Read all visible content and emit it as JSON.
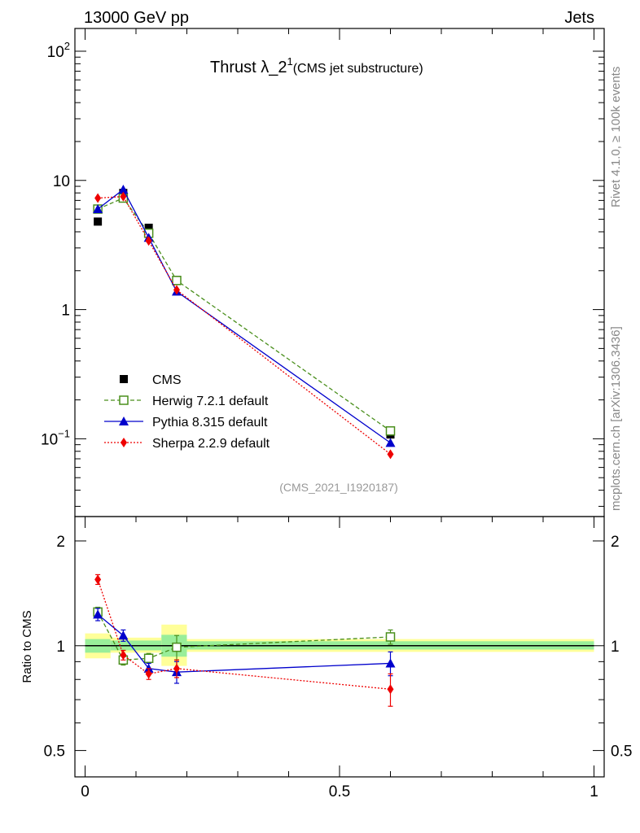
{
  "header": {
    "left": "13000 GeV pp",
    "right": "Jets"
  },
  "side": {
    "rivet": "Rivet 4.1.0, ≥ 100k events",
    "mcplots": "mcplots.cern.ch [arXiv:1306.3436]"
  },
  "chart_data": [
    {
      "type": "scatter",
      "panel": "main",
      "title": "Thrust λ_2",
      "title_sup": "1",
      "subtitle": "(CMS jet substructure)",
      "watermark": "(CMS_2021_I1920187)",
      "yscale": "log",
      "ylim": [
        0.025,
        150
      ],
      "xlim": [
        -0.02,
        1.02
      ],
      "yticks": [
        {
          "value": 0.1,
          "base": "10",
          "exp": "−1"
        },
        {
          "value": 1,
          "base": "1",
          "exp": ""
        },
        {
          "value": 10,
          "base": "10",
          "exp": ""
        },
        {
          "value": 100,
          "base": "10",
          "exp": "2"
        }
      ],
      "legend_position": "lower-left",
      "series": [
        {
          "name": "CMS",
          "label": "CMS",
          "color": "#000000",
          "marker": "square",
          "line": "none",
          "x": [
            0.025,
            0.075,
            0.125,
            0.18,
            0.6
          ],
          "y": [
            4.8,
            8.0,
            4.3,
            1.7,
            0.108
          ]
        },
        {
          "name": "Herwig",
          "label": "Herwig 7.2.1 default",
          "color": "#4a8f1c",
          "marker": "open-square",
          "line": "dashed",
          "x": [
            0.025,
            0.075,
            0.125,
            0.18,
            0.6
          ],
          "y": [
            6.0,
            7.3,
            3.9,
            1.68,
            0.115
          ]
        },
        {
          "name": "Pythia",
          "label": "Pythia 8.315 default",
          "color": "#0000cc",
          "marker": "triangle",
          "line": "solid",
          "x": [
            0.025,
            0.075,
            0.125,
            0.18,
            0.6
          ],
          "y": [
            6.0,
            8.5,
            3.6,
            1.38,
            0.093
          ]
        },
        {
          "name": "Sherpa",
          "label": "Sherpa 2.2.9 default",
          "color": "#ee0000",
          "marker": "diamond",
          "line": "dotted",
          "x": [
            0.025,
            0.075,
            0.125,
            0.18,
            0.6
          ],
          "y": [
            7.3,
            7.5,
            3.4,
            1.42,
            0.076
          ]
        }
      ]
    },
    {
      "type": "scatter",
      "panel": "ratio",
      "ylabel": "Ratio to CMS",
      "yscale": "log",
      "ylim": [
        0.42,
        2.35
      ],
      "xlim": [
        -0.02,
        1.02
      ],
      "yticks": [
        {
          "value": 0.5,
          "label": "0.5"
        },
        {
          "value": 1,
          "label": "1"
        },
        {
          "value": 2,
          "label": "2"
        }
      ],
      "xticks": [
        {
          "value": 0,
          "label": "0"
        },
        {
          "value": 0.5,
          "label": "0.5"
        },
        {
          "value": 1,
          "label": "1"
        }
      ],
      "bands": [
        {
          "x0": 0.0,
          "x1": 0.05,
          "stat": [
            0.955,
            1.045
          ],
          "total": [
            0.92,
            1.085
          ]
        },
        {
          "x0": 0.05,
          "x1": 0.15,
          "stat": [
            0.97,
            1.035
          ],
          "total": [
            0.955,
            1.055
          ]
        },
        {
          "x0": 0.15,
          "x1": 0.2,
          "stat": [
            0.93,
            1.075
          ],
          "total": [
            0.875,
            1.15
          ]
        },
        {
          "x0": 0.2,
          "x1": 1.0,
          "stat": [
            0.975,
            1.03
          ],
          "total": [
            0.96,
            1.045
          ]
        }
      ],
      "series": [
        {
          "name": "Herwig",
          "x": [
            0.025,
            0.075,
            0.125,
            0.18,
            0.6
          ],
          "y": [
            1.25,
            0.91,
            0.92,
            0.99,
            1.06
          ],
          "err": [
            0.04,
            0.03,
            0.03,
            0.08,
            0.05
          ]
        },
        {
          "name": "Pythia",
          "x": [
            0.025,
            0.075,
            0.125,
            0.18,
            0.6
          ],
          "y": [
            1.23,
            1.07,
            0.86,
            0.84,
            0.89
          ],
          "err": [
            0.05,
            0.04,
            0.03,
            0.06,
            0.07
          ]
        },
        {
          "name": "Sherpa",
          "x": [
            0.025,
            0.075,
            0.125,
            0.18,
            0.6
          ],
          "y": [
            1.55,
            0.94,
            0.83,
            0.86,
            0.75
          ],
          "err": [
            0.05,
            0.03,
            0.03,
            0.05,
            0.08
          ]
        }
      ]
    }
  ]
}
